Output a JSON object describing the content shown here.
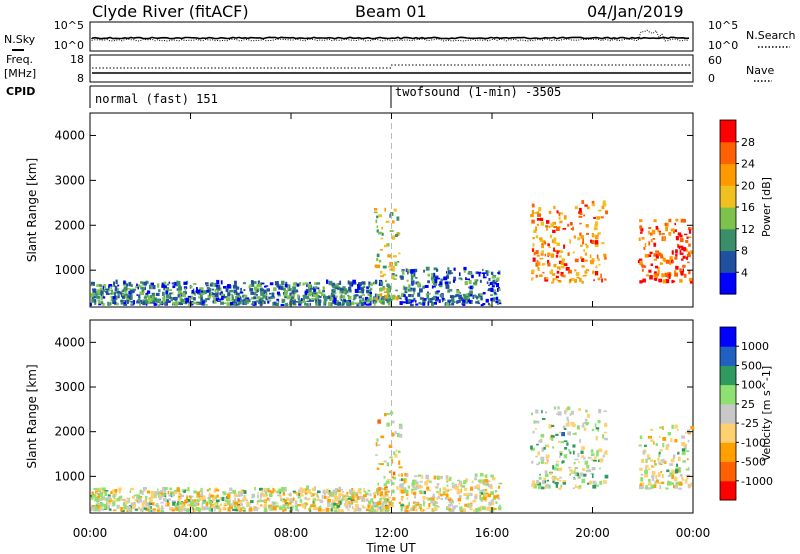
{
  "header": {
    "station": "Clyde River (fitACF)",
    "beam": "Beam 01",
    "date": "04/Jan/2019"
  },
  "noise_panel": {
    "left_label": "N.Sky",
    "right_label": "N.Search",
    "left_ticks": [
      "10^5",
      "10^0"
    ],
    "right_ticks": [
      "10^5",
      "10^0"
    ]
  },
  "freq_panel": {
    "left_label_line1": "Freq.",
    "left_label_line2": "[MHz]",
    "right_label": "Nave",
    "left_ticks": [
      "18",
      "8"
    ],
    "right_ticks": [
      "60",
      "0"
    ]
  },
  "cpid": {
    "label": "CPID",
    "segments": [
      {
        "text": "normal (fast) 151",
        "start_hour": 0
      },
      {
        "text": "twofsound (1-min) -3505",
        "start_hour": 12
      }
    ]
  },
  "x_axis": {
    "label": "Time UT",
    "ticks": [
      "00:00",
      "04:00",
      "08:00",
      "12:00",
      "16:00",
      "20:00",
      "00:00"
    ]
  },
  "chart_data": [
    {
      "type": "heatmap",
      "title": "",
      "xlabel": "Time UT",
      "ylabel": "Slant Range [km]",
      "xlim": [
        0,
        24
      ],
      "ylim": [
        180,
        4500
      ],
      "yticks": [
        "1000",
        "2000",
        "3000",
        "4000"
      ],
      "colorbar": {
        "label": "Power [dB]",
        "ticks": [
          "28",
          "24",
          "20",
          "16",
          "12",
          "8",
          "4"
        ],
        "range": [
          0,
          30
        ],
        "colors": [
          "#0000ff",
          "#2050a0",
          "#3a8f6a",
          "#7dc24a",
          "#f0c020",
          "#ff9a00",
          "#ff6000",
          "#ff0000"
        ]
      },
      "regions": [
        {
          "t": [
            0.0,
            11.9
          ],
          "range_km": [
            200,
            700
          ],
          "value": 8
        },
        {
          "t": [
            11.3,
            12.3
          ],
          "range_km": [
            300,
            2400
          ],
          "value": 14
        },
        {
          "t": [
            12.3,
            16.3
          ],
          "range_km": [
            200,
            1000
          ],
          "value": 7
        },
        {
          "t": [
            17.5,
            20.5
          ],
          "range_km": [
            700,
            2500
          ],
          "value": 22
        },
        {
          "t": [
            21.8,
            23.9
          ],
          "range_km": [
            700,
            2100
          ],
          "value": 25
        }
      ]
    },
    {
      "type": "heatmap",
      "title": "",
      "xlabel": "Time UT",
      "ylabel": "Slant Range [km]",
      "xlim": [
        0,
        24
      ],
      "ylim": [
        180,
        4500
      ],
      "yticks": [
        "1000",
        "2000",
        "3000",
        "4000"
      ],
      "colorbar": {
        "label": "Velocity [m s^-1]",
        "ticks": [
          "1000",
          "500",
          "100",
          "25",
          "-25",
          "-100",
          "-500",
          "-1000"
        ],
        "range": [
          -1000,
          1000
        ],
        "colors": [
          "#ff0000",
          "#ff6000",
          "#ffa000",
          "#ffd070",
          "#c8c8c8",
          "#8ee070",
          "#2e9a60",
          "#2060c0",
          "#0000ff"
        ]
      },
      "regions": [
        {
          "t": [
            0.0,
            11.9
          ],
          "range_km": [
            200,
            700
          ],
          "value": -30
        },
        {
          "t": [
            11.3,
            12.3
          ],
          "range_km": [
            300,
            2400
          ],
          "value": -150
        },
        {
          "t": [
            12.3,
            16.3
          ],
          "range_km": [
            200,
            1000
          ],
          "value": -100
        },
        {
          "t": [
            17.5,
            20.5
          ],
          "range_km": [
            700,
            2500
          ],
          "value": 120
        },
        {
          "t": [
            21.8,
            23.9
          ],
          "range_km": [
            700,
            2100
          ],
          "value": -60
        }
      ]
    }
  ]
}
